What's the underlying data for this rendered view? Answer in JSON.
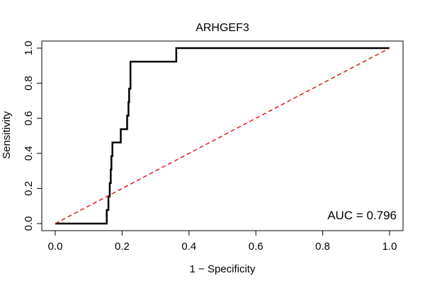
{
  "chart_data": {
    "type": "line",
    "title": "ARHGEF3",
    "xlabel": "1 − Specificity",
    "ylabel": "Sensitivity",
    "xlim": [
      0.0,
      1.0
    ],
    "ylim": [
      0.0,
      1.0
    ],
    "x_ticks": [
      "0.0",
      "0.2",
      "0.4",
      "0.6",
      "0.8",
      "1.0"
    ],
    "y_ticks": [
      "0.0",
      "0.2",
      "0.4",
      "0.6",
      "0.8",
      "1.0"
    ],
    "grid": false,
    "annotation": "AUC = 0.796",
    "series": [
      {
        "color": "#000000",
        "style": "step",
        "x": [
          0.0,
          0.154,
          0.154,
          0.159,
          0.159,
          0.163,
          0.163,
          0.166,
          0.166,
          0.168,
          0.168,
          0.171,
          0.171,
          0.174,
          0.174,
          0.196,
          0.196,
          0.215,
          0.215,
          0.219,
          0.219,
          0.221,
          0.221,
          0.225,
          0.225,
          0.362,
          0.362,
          1.0
        ],
        "y": [
          0.0,
          0.0,
          0.077,
          0.077,
          0.154,
          0.154,
          0.231,
          0.231,
          0.308,
          0.308,
          0.385,
          0.385,
          0.462,
          0.462,
          0.462,
          0.462,
          0.538,
          0.538,
          0.615,
          0.615,
          0.692,
          0.692,
          0.769,
          0.769,
          0.923,
          0.923,
          1.0,
          1.0
        ]
      },
      {
        "color": "#e31a1c",
        "style": "dashed",
        "x": [
          0.0,
          1.0
        ],
        "y": [
          0.0,
          1.0
        ]
      }
    ]
  }
}
